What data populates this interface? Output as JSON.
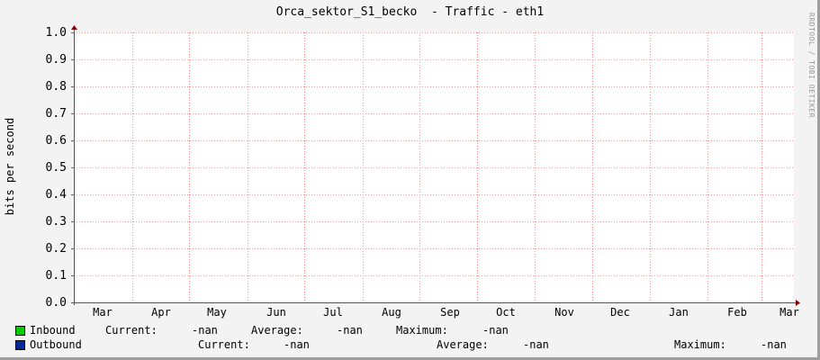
{
  "chart_data": {
    "type": "line",
    "title": "Orca_sektor_S1_becko  - Traffic - eth1",
    "ylabel": "bits per second",
    "ylim": [
      0,
      1.0
    ],
    "yticks": [
      "0.0",
      "0.1",
      "0.2",
      "0.3",
      "0.4",
      "0.5",
      "0.6",
      "0.7",
      "0.8",
      "0.9",
      "1.0"
    ],
    "xticks": [
      "Mar",
      "Apr",
      "May",
      "Jun",
      "Jul",
      "Aug",
      "Sep",
      "Oct",
      "Nov",
      "Dec",
      "Jan",
      "Feb",
      "Mar"
    ],
    "grid": true,
    "series": [
      {
        "name": "Inbound",
        "color": "#00cc00",
        "values": []
      },
      {
        "name": "Outbound",
        "color": "#002a97",
        "values": []
      }
    ]
  },
  "legend": {
    "inbound": {
      "name": "Inbound",
      "current_label": "Current:",
      "current": "-nan",
      "average_label": "Average:",
      "average": "-nan",
      "maximum_label": "Maximum:",
      "maximum": "-nan"
    },
    "outbound": {
      "name": "Outbound",
      "current_label": "Current:",
      "current": "-nan",
      "average_label": "Average:",
      "average": "-nan",
      "maximum_label": "Maximum:",
      "maximum": "-nan"
    }
  },
  "watermark": "RRDTOOL / TOBI OETIKER"
}
